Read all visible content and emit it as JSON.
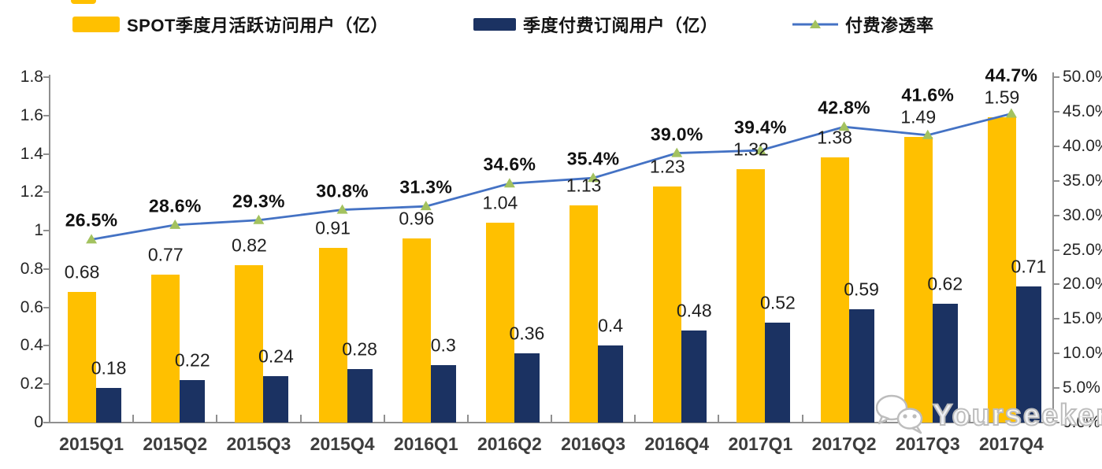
{
  "legend": {
    "items": [
      {
        "label": "SPOT季度月活跃访问用户（亿）",
        "swatch": "bar",
        "color": "#FFC000"
      },
      {
        "label": "季度付费订阅用户（亿）",
        "swatch": "bar",
        "color": "#1F3864"
      },
      {
        "label": "付费渗透率",
        "swatch": "line",
        "color": "#4472C4"
      }
    ]
  },
  "watermark": {
    "text": "Yourseeker",
    "icon": "wechat-icon"
  },
  "colors": {
    "bar_mau": "#FFC000",
    "bar_subs": "#1B3262",
    "line": "#4472C4",
    "marker": "#A3C25F",
    "axis": "#8F8F8F"
  },
  "chart_data": {
    "type": "bar",
    "subtype": "grouped bars with overlay line",
    "categories": [
      "2015Q1",
      "2015Q2",
      "2015Q3",
      "2015Q4",
      "2016Q1",
      "2016Q2",
      "2016Q3",
      "2016Q4",
      "2017Q1",
      "2017Q2",
      "2017Q3",
      "2017Q4"
    ],
    "series": [
      {
        "name": "SPOT季度月活跃访问用户（亿）",
        "type": "bar",
        "axis": "left",
        "color": "#FFC000",
        "values": [
          0.68,
          0.77,
          0.82,
          0.91,
          0.96,
          1.04,
          1.13,
          1.23,
          1.32,
          1.38,
          1.49,
          1.59
        ],
        "labels": [
          "0.68",
          "0.77",
          "0.82",
          "0.91",
          "0.96",
          "1.04",
          "1.13",
          "1.23",
          "1.32",
          "1.38",
          "1.49",
          "1.59"
        ]
      },
      {
        "name": "季度付费订阅用户（亿）",
        "type": "bar",
        "axis": "left",
        "color": "#1F3864",
        "values": [
          0.18,
          0.22,
          0.24,
          0.28,
          0.3,
          0.36,
          0.4,
          0.48,
          0.52,
          0.59,
          0.62,
          0.71
        ],
        "labels": [
          "0.18",
          "0.22",
          "0.24",
          "0.28",
          "0.3",
          "0.36",
          "0.4",
          "0.48",
          "0.52",
          "0.59",
          "0.62",
          "0.71"
        ]
      },
      {
        "name": "付费渗透率",
        "type": "line",
        "axis": "right",
        "color": "#4472C4",
        "marker": "triangle-up",
        "values": [
          26.5,
          28.6,
          29.3,
          30.8,
          31.3,
          34.6,
          35.4,
          39.0,
          39.4,
          42.8,
          41.6,
          44.7
        ],
        "labels": [
          "26.5%",
          "28.6%",
          "29.3%",
          "30.8%",
          "31.3%",
          "34.6%",
          "35.4%",
          "39.0%",
          "39.4%",
          "42.8%",
          "41.6%",
          "44.7%"
        ]
      }
    ],
    "left_axis": {
      "min": 0,
      "max": 1.8,
      "ticks": [
        "1.8",
        "1.6",
        "1.4",
        "1.2",
        "1",
        "0.8",
        "0.6",
        "0.4",
        "0.2",
        "0"
      ]
    },
    "right_axis": {
      "min": 0,
      "max": 50,
      "ticks": [
        "50.0%",
        "45.0%",
        "40.0%",
        "35.0%",
        "30.0%",
        "25.0%",
        "20.0%",
        "15.0%",
        "10.0%",
        "5.0%",
        "0.0%"
      ]
    },
    "grid": false,
    "legend_position": "top"
  }
}
